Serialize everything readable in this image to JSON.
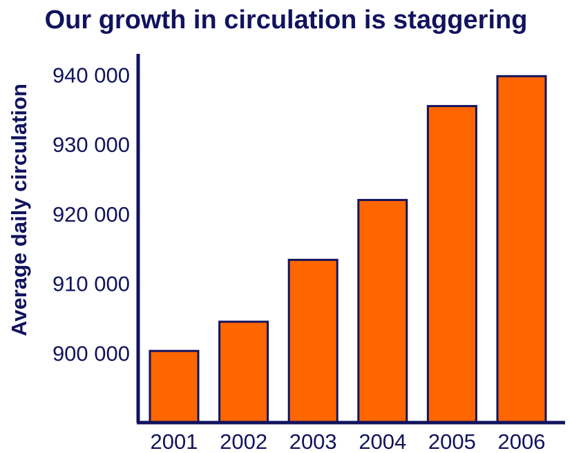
{
  "chart_data": {
    "type": "bar",
    "title": "Our growth in circulation is staggering",
    "xlabel": "",
    "ylabel": "Average daily circulation",
    "categories": [
      "2001",
      "2002",
      "2003",
      "2004",
      "2005",
      "2006"
    ],
    "values": [
      900300,
      904500,
      913400,
      922000,
      935500,
      939800
    ],
    "yticks": [
      900000,
      910000,
      920000,
      930000,
      940000
    ],
    "ytick_labels": [
      "900 000",
      "910 000",
      "920 000",
      "930 000",
      "940 000"
    ],
    "ylim": [
      890000,
      944000
    ],
    "grid": false,
    "legend": "none",
    "colors": {
      "bar_fill": "#ff6600",
      "bar_stroke": "#11135e",
      "axis": "#11135e",
      "text": "#11135e"
    }
  }
}
